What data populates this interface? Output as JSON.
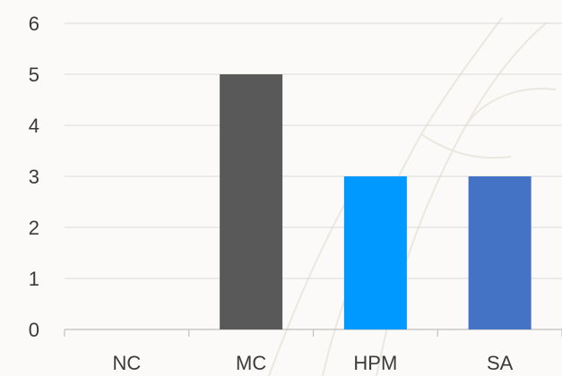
{
  "chart_data": {
    "type": "bar",
    "categories": [
      "NC",
      "MC",
      "HPM",
      "SA"
    ],
    "values": [
      0,
      5,
      3,
      3
    ],
    "colors": [
      "#595959",
      "#595959",
      "#0099ff",
      "#4472c4"
    ],
    "yticks": [
      0,
      1,
      2,
      3,
      4,
      5,
      6
    ],
    "ylim": [
      0,
      6
    ],
    "grid": true,
    "title": "",
    "xlabel": "",
    "ylabel": ""
  }
}
